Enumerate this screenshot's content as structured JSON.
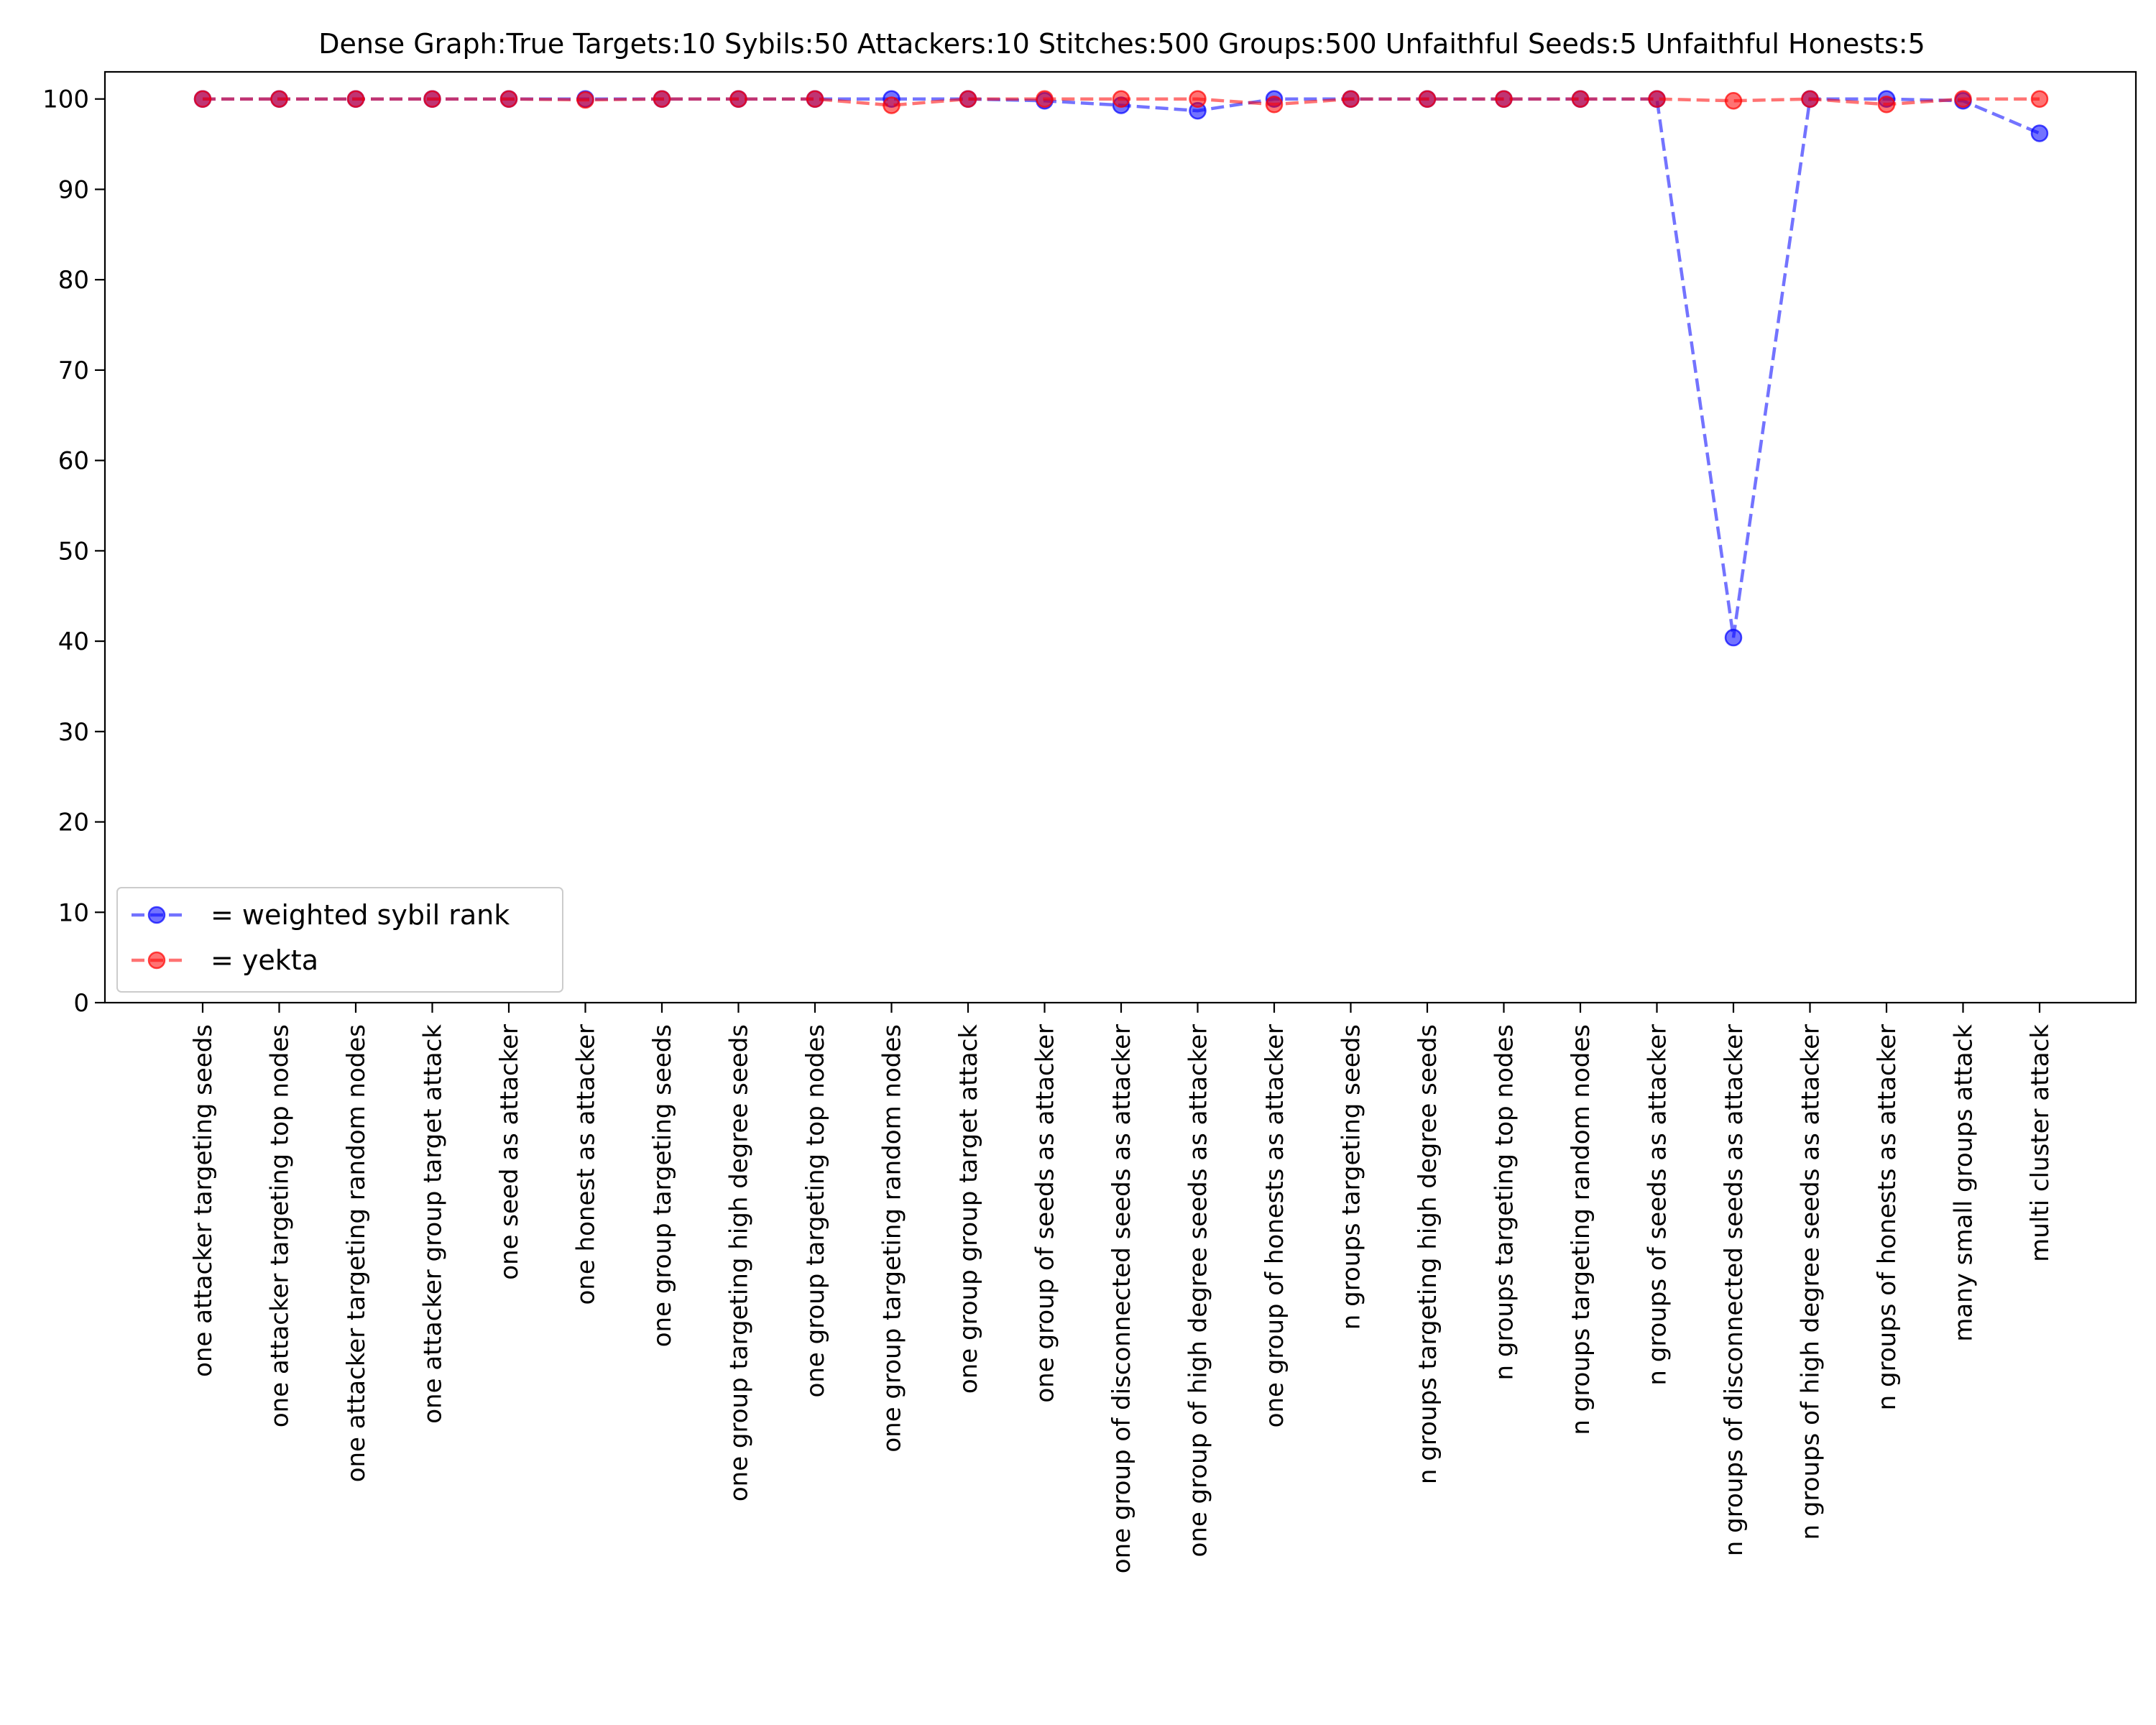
{
  "chart_data": {
    "type": "line",
    "title": "Dense Graph:True Targets:10 Sybils:50 Attackers:10 Stitches:500 Groups:500 Unfaithful Seeds:5 Unfaithful Honests:5",
    "xlabel": "",
    "ylabel": "",
    "ylim": [
      0,
      103
    ],
    "yticks": [
      0,
      10,
      20,
      30,
      40,
      50,
      60,
      70,
      80,
      90,
      100
    ],
    "grid": false,
    "legend_position": "lower-left",
    "categories": [
      "one attacker targeting seeds",
      "one attacker targeting top nodes",
      "one attacker targeting random nodes",
      "one attacker group target attack",
      "one seed as attacker",
      "one honest as attacker",
      "one group targeting seeds",
      "one group targeting high degree seeds",
      "one group targeting top nodes",
      "one group targeting random nodes",
      "one group group target attack",
      "one group of seeds as attacker",
      "one group of disconnected seeds as attacker",
      "one group of high degree seeds as attacker",
      "one group of honests as attacker",
      "n groups targeting seeds",
      "n groups targeting high degree seeds",
      "n groups targeting top nodes",
      "n groups targeting random nodes",
      "n groups of seeds as attacker",
      "n groups of disconnected seeds as attacker",
      "n groups of high degree seeds as attacker",
      "n groups of honests as attacker",
      "many small groups attack",
      "multi cluster attack"
    ],
    "series": [
      {
        "name": "= weighted sybil rank",
        "color": "#0000ff",
        "values": [
          100,
          100,
          100,
          100,
          100,
          100,
          100,
          100,
          100,
          100,
          100,
          99.8,
          99.3,
          98.7,
          100,
          100,
          100,
          100,
          100,
          100,
          40.4,
          100,
          100,
          99.8,
          96.2
        ]
      },
      {
        "name": "= yekta",
        "color": "#ff0000",
        "values": [
          100,
          100,
          100,
          100,
          100,
          99.9,
          100,
          100,
          100,
          99.3,
          100,
          100,
          100,
          100,
          99.4,
          100,
          100,
          100,
          100,
          100,
          99.8,
          100,
          99.4,
          100,
          100
        ]
      }
    ]
  }
}
